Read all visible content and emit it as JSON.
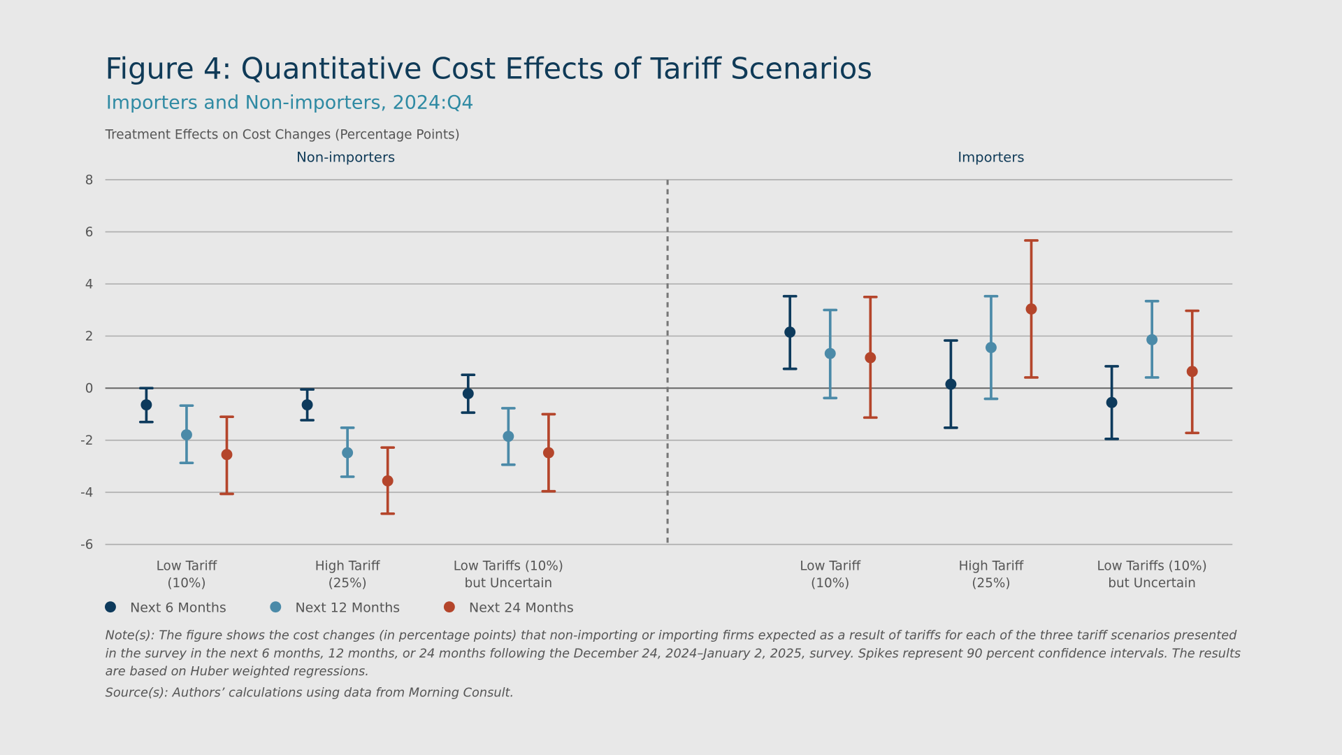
{
  "title": "Figure 4: Quantitative Cost Effects of Tariff Scenarios",
  "subtitle": "Importers and Non-importers, 2024:Q4",
  "colors": {
    "background": "#e8e8e8",
    "next6": "#0d3a5c",
    "next12": "#4b8aa8",
    "next24": "#b4452b",
    "grid": "#b0b0b0",
    "zero": "#666666"
  },
  "chart_data": {
    "type": "errorbar",
    "ylabel": "Treatment Effects on Cost Changes (Percentage Points)",
    "ylim": [
      -6,
      8
    ],
    "yticks": [
      8,
      6,
      4,
      2,
      0,
      -2,
      -4,
      -6
    ],
    "grid": true,
    "legend_placement": "bottom-left",
    "series_names": [
      "Next 6 Months",
      "Next 12 Months",
      "Next 24 Months"
    ],
    "panels": [
      {
        "name": "Non-importers",
        "categories": [
          [
            "Low Tariff",
            "(10%)"
          ],
          [
            "High Tariff",
            "(25%)"
          ],
          [
            "Low Tariffs (10%)",
            "but Uncertain"
          ]
        ],
        "values": [
          [
            {
              "est": -0.64,
              "lo": -1.3,
              "hi": 0.0
            },
            {
              "est": -1.79,
              "lo": -2.87,
              "hi": -0.67
            },
            {
              "est": -2.55,
              "lo": -4.06,
              "hi": -1.1
            }
          ],
          [
            {
              "est": -0.64,
              "lo": -1.23,
              "hi": -0.05
            },
            {
              "est": -2.48,
              "lo": -3.4,
              "hi": -1.52
            },
            {
              "est": -3.56,
              "lo": -4.82,
              "hi": -2.28
            }
          ],
          [
            {
              "est": -0.21,
              "lo": -0.94,
              "hi": 0.51
            },
            {
              "est": -1.85,
              "lo": -2.94,
              "hi": -0.77
            },
            {
              "est": -2.48,
              "lo": -3.96,
              "hi": -1.0
            }
          ]
        ]
      },
      {
        "name": "Importers",
        "categories": [
          [
            "Low Tariff",
            "(10%)"
          ],
          [
            "High Tariff",
            "(25%)"
          ],
          [
            "Low Tariffs (10%)",
            "but Uncertain"
          ]
        ],
        "values": [
          [
            {
              "est": 2.15,
              "lo": 0.74,
              "hi": 3.53
            },
            {
              "est": 1.33,
              "lo": -0.38,
              "hi": 3.0
            },
            {
              "est": 1.17,
              "lo": -1.13,
              "hi": 3.5
            }
          ],
          [
            {
              "est": 0.15,
              "lo": -1.52,
              "hi": 1.83
            },
            {
              "est": 1.56,
              "lo": -0.41,
              "hi": 3.53
            },
            {
              "est": 3.04,
              "lo": 0.41,
              "hi": 5.67
            }
          ],
          [
            {
              "est": -0.55,
              "lo": -1.95,
              "hi": 0.84
            },
            {
              "est": 1.86,
              "lo": 0.41,
              "hi": 3.34
            },
            {
              "est": 0.64,
              "lo": -1.72,
              "hi": 2.97
            }
          ]
        ]
      }
    ]
  },
  "notes": [
    "Note(s): The figure shows the cost changes (in percentage points) that non-importing or importing firms expected as a result of tariffs for each of the three tariff scenarios presented",
    "in the survey in the next 6 months, 12 months, or 24 months following the December 24, 2024–January 2, 2025, survey. Spikes represent 90 percent confidence intervals. The results",
    "are based on Huber weighted regressions."
  ],
  "source": "Source(s): Authors’ calculations using data from Morning Consult."
}
